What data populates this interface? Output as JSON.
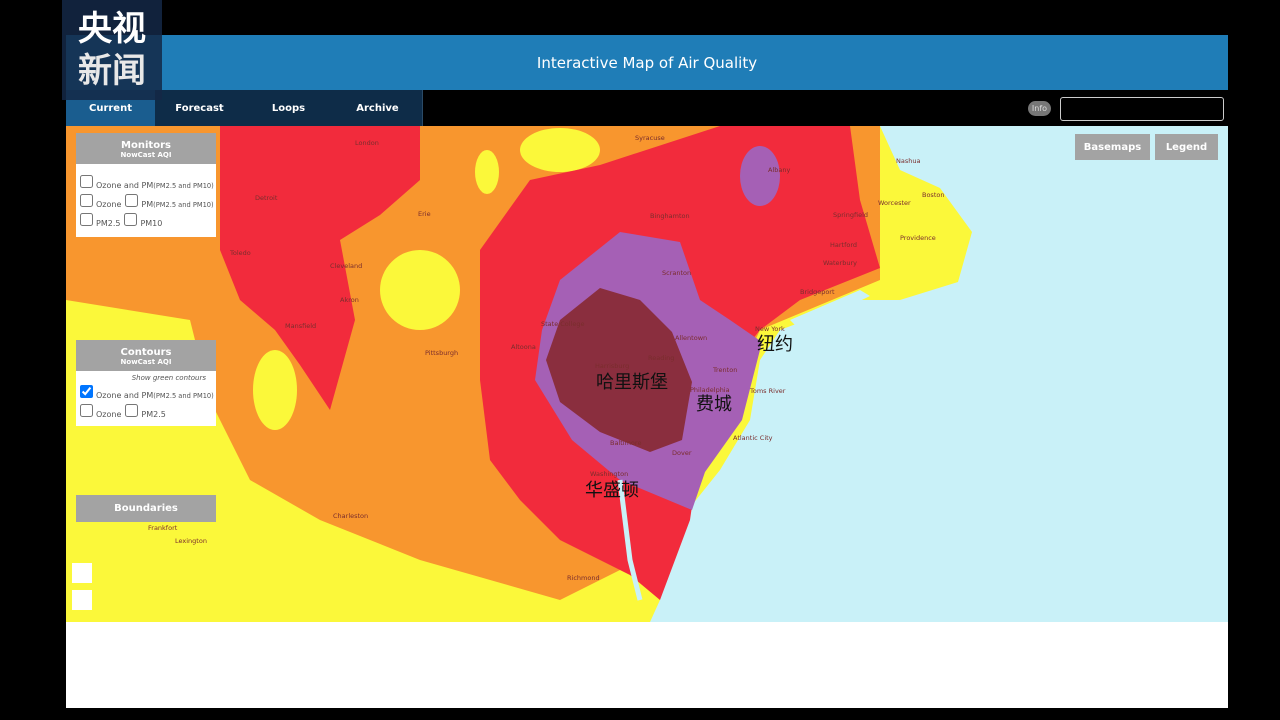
{
  "logo": {
    "lines": [
      "央视",
      "新闻"
    ]
  },
  "header": {
    "title": "Interactive Map of Air Quality"
  },
  "tabs": [
    "Current",
    "Forecast",
    "Loops",
    "Archive"
  ],
  "info": "Info",
  "map_buttons": [
    "Basemaps",
    "Legend"
  ],
  "panels": {
    "monitors": {
      "title": "Monitors",
      "subtitle": "NowCast AQI",
      "options": [
        {
          "label": "Ozone and PM",
          "sub": "(PM2.5 and PM10)"
        },
        {
          "label": "Ozone"
        },
        {
          "label": "PM",
          "sub": "(PM2.5 and PM10)"
        },
        {
          "label": "PM2.5"
        },
        {
          "label": "PM10"
        }
      ]
    },
    "contours": {
      "title": "Contours",
      "subtitle": "NowCast AQI",
      "note": "Show green contours",
      "options": [
        {
          "label": "Ozone and PM",
          "sub": "(PM2.5 and PM10)",
          "checked": true
        },
        {
          "label": "Ozone"
        },
        {
          "label": "PM2.5"
        }
      ]
    },
    "boundaries": {
      "title": "Boundaries"
    }
  },
  "map_labels": [
    "纽约",
    "哈里斯堡",
    "费城",
    "华盛顿"
  ],
  "cities": [
    "London",
    "Detroit",
    "Toledo",
    "Cleveland",
    "Akron",
    "Erie",
    "Pittsburgh",
    "Mansfield",
    "Syracuse",
    "Binghamton",
    "Albany",
    "Scranton",
    "State College",
    "Harrisburg",
    "Reading",
    "Allentown",
    "Trenton",
    "Philadelphia",
    "New York",
    "Bridgeport",
    "Hartford",
    "Waterbury",
    "Springfield",
    "Worcester",
    "Boston",
    "Providence",
    "Nashua",
    "Baltimore",
    "Washington",
    "Dover",
    "Atlantic City",
    "Toms River",
    "Altoona",
    "Charleston",
    "Lexington",
    "Frankfort",
    "Richmond"
  ]
}
